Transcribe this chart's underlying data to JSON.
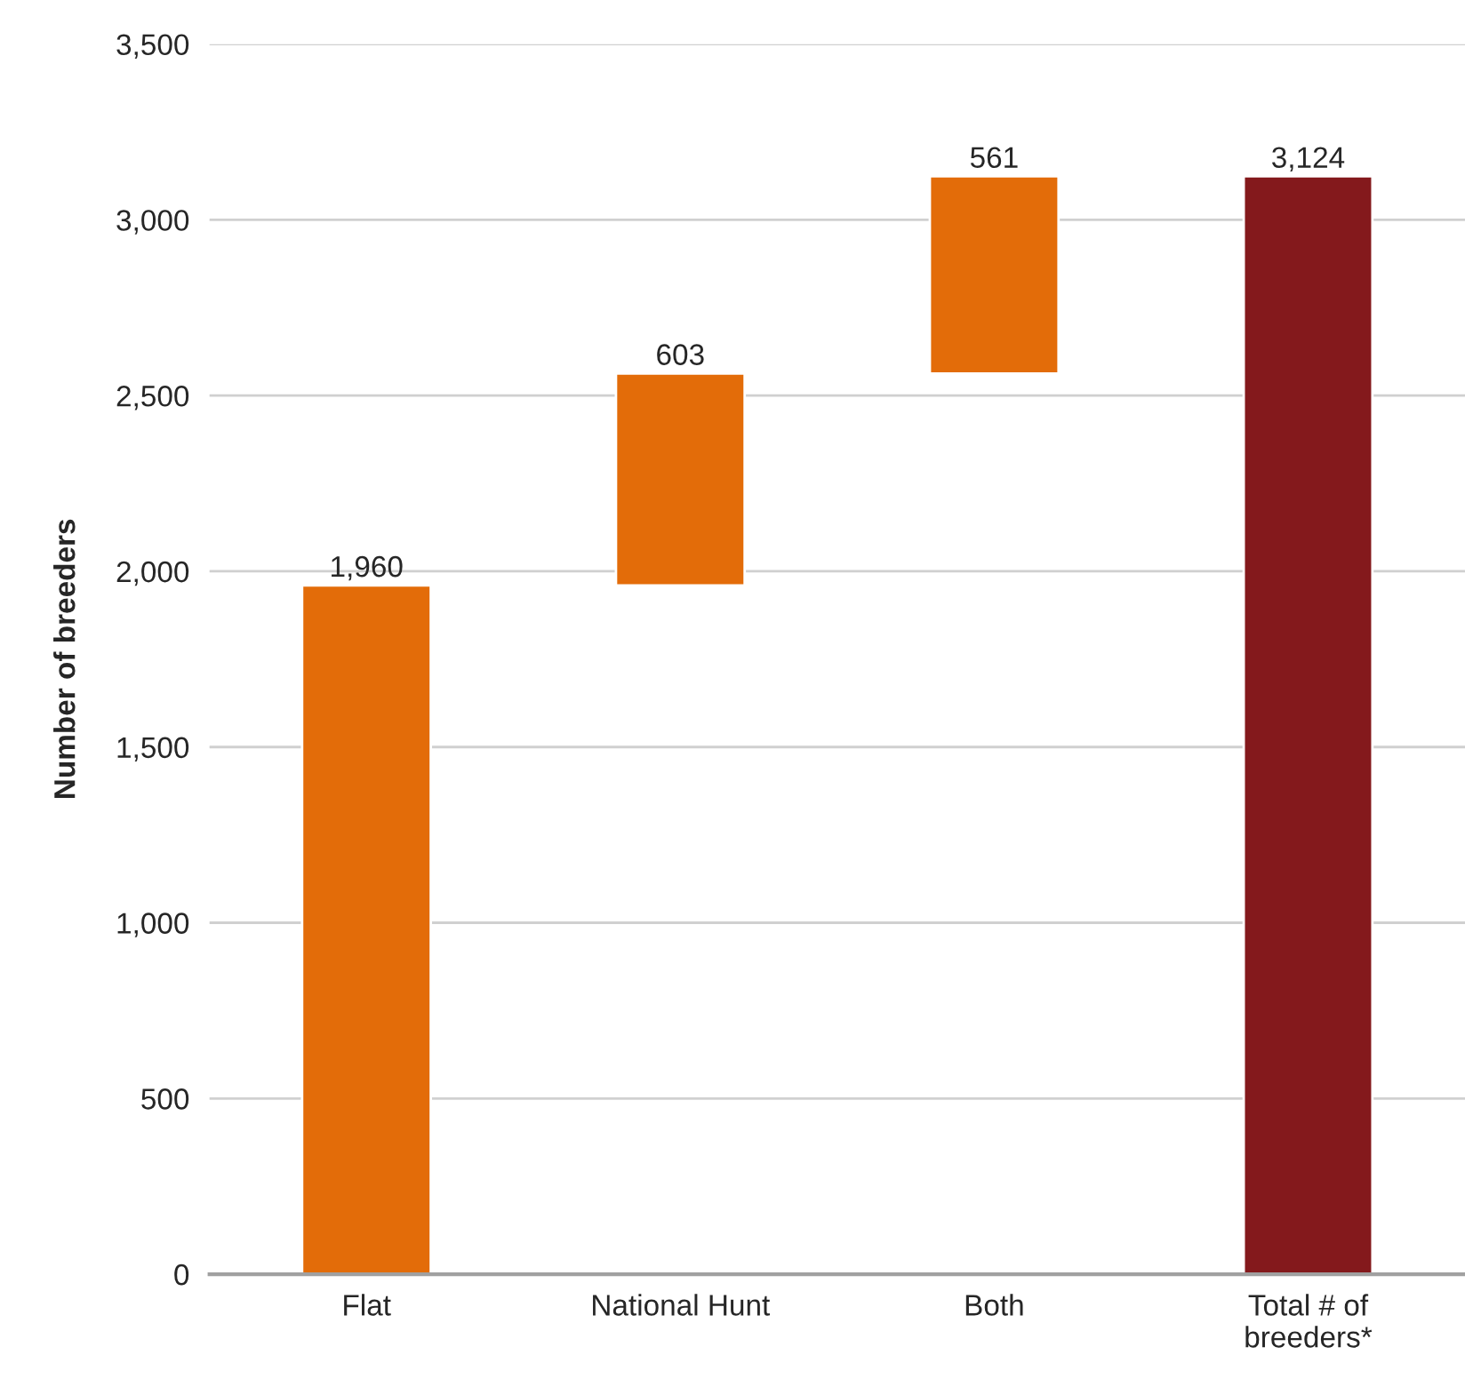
{
  "chart_data": {
    "type": "bar",
    "ylabel": "Number of breeders",
    "categories": [
      "Flat",
      "National Hunt",
      "Both",
      "Total # of\nbreeders*"
    ],
    "values": [
      1960,
      603,
      561,
      3124
    ],
    "base": [
      0,
      1960,
      2563,
      0
    ],
    "colors": [
      "#e36c09",
      "#e36c09",
      "#e36c09",
      "#84191c"
    ],
    "value_labels": [
      "1,960",
      "603",
      "561",
      "3,124"
    ],
    "ylim": [
      0,
      3500
    ],
    "yticks": [
      {
        "value": 0,
        "label": "0"
      },
      {
        "value": 500,
        "label": "500"
      },
      {
        "value": 1000,
        "label": "1,000"
      },
      {
        "value": 1500,
        "label": "1,500"
      },
      {
        "value": 2000,
        "label": "2,000"
      },
      {
        "value": 2500,
        "label": "2,500"
      },
      {
        "value": 3000,
        "label": "3,000"
      },
      {
        "value": 3500,
        "label": "3,500"
      }
    ],
    "grid": "y",
    "legend": false
  }
}
